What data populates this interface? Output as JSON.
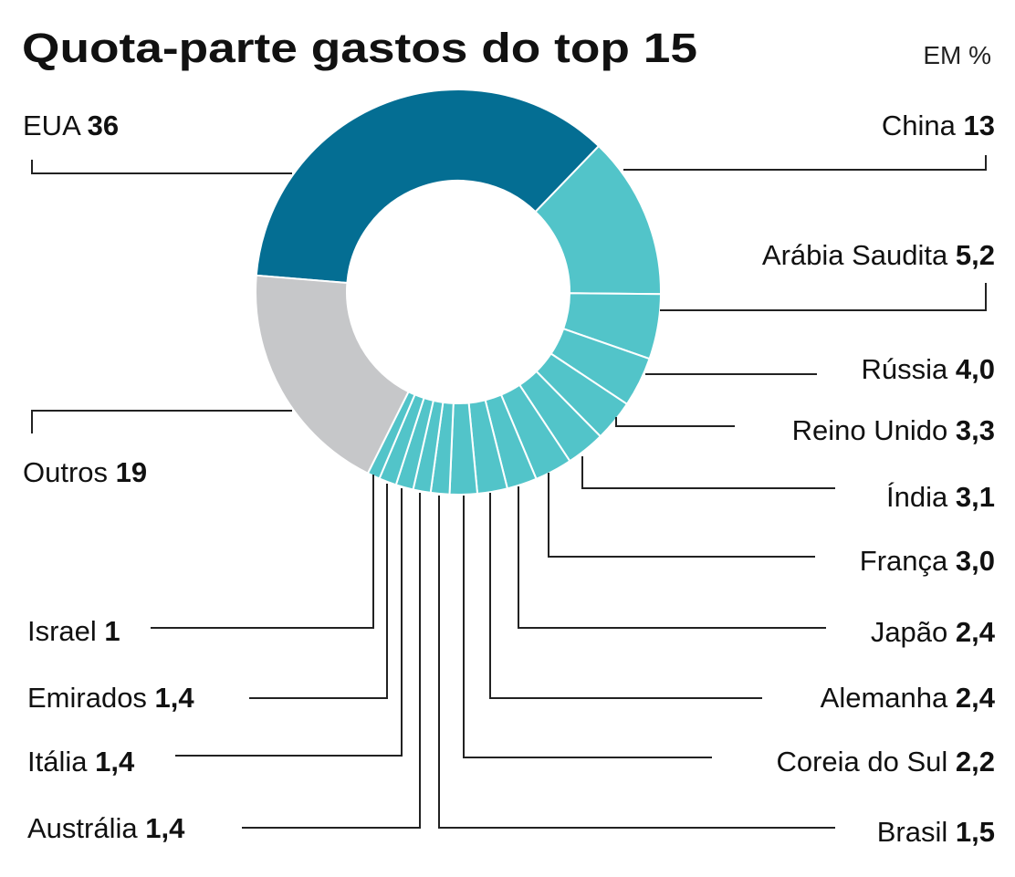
{
  "chart_data": {
    "type": "pie",
    "variant": "donut",
    "title": "Quota-parte gastos do top 15",
    "unit_label": "EM %",
    "slices": [
      {
        "name": "EUA",
        "value": 36,
        "label": "36",
        "color": "#046e93"
      },
      {
        "name": "China",
        "value": 13,
        "label": "13",
        "color": "#52c4c9"
      },
      {
        "name": "Arábia Saudita",
        "value": 5.2,
        "label": "5,2",
        "color": "#52c4c9"
      },
      {
        "name": "Rússia",
        "value": 4.0,
        "label": "4,0",
        "color": "#52c4c9"
      },
      {
        "name": "Reino Unido",
        "value": 3.3,
        "label": "3,3",
        "color": "#52c4c9"
      },
      {
        "name": "Índia",
        "value": 3.1,
        "label": "3,1",
        "color": "#52c4c9"
      },
      {
        "name": "França",
        "value": 3.0,
        "label": "3,0",
        "color": "#52c4c9"
      },
      {
        "name": "Japão",
        "value": 2.4,
        "label": "2,4",
        "color": "#52c4c9"
      },
      {
        "name": "Alemanha",
        "value": 2.4,
        "label": "2,4",
        "color": "#52c4c9"
      },
      {
        "name": "Coreia do Sul",
        "value": 2.2,
        "label": "2,2",
        "color": "#52c4c9"
      },
      {
        "name": "Brasil",
        "value": 1.5,
        "label": "1,5",
        "color": "#52c4c9"
      },
      {
        "name": "Austrália",
        "value": 1.4,
        "label": "1,4",
        "color": "#52c4c9"
      },
      {
        "name": "Itália",
        "value": 1.4,
        "label": "1,4",
        "color": "#52c4c9"
      },
      {
        "name": "Emirados",
        "value": 1.4,
        "label": "1,4",
        "color": "#52c4c9"
      },
      {
        "name": "Israel",
        "value": 1,
        "label": "1",
        "color": "#52c4c9"
      },
      {
        "name": "Outros",
        "value": 19,
        "label": "19",
        "color": "#c6c7c9"
      }
    ]
  }
}
